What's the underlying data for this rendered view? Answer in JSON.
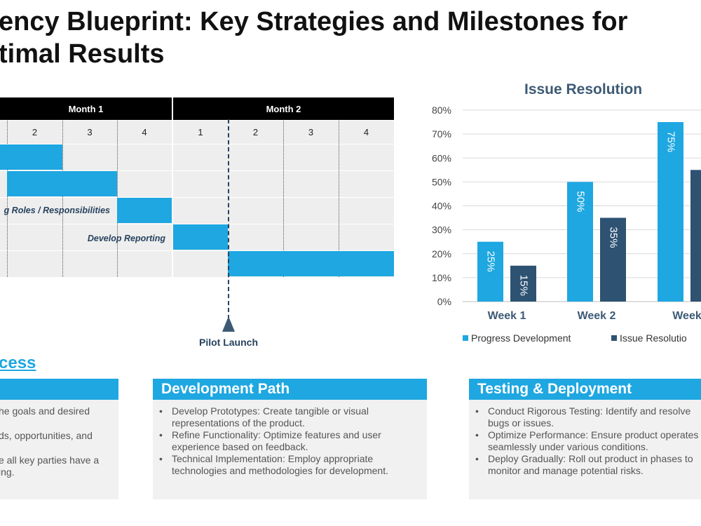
{
  "title": {
    "line1": "ency Blueprint: Key Strategies and Milestones for",
    "line2": "timal Results"
  },
  "gantt": {
    "months": [
      "Month 1",
      "Month 2"
    ],
    "weeks": [
      "2",
      "3",
      "4",
      "1",
      "2",
      "3",
      "4"
    ],
    "tasks": [
      {
        "label": ""
      },
      {
        "label": ""
      },
      {
        "label": "g Roles / Responsibilities"
      },
      {
        "label": "Develop Reporting"
      },
      {
        "label": ""
      }
    ],
    "milestone": "Pilot Launch"
  },
  "chart_data": {
    "type": "bar",
    "title": "Issue Resolution",
    "categories": [
      "Week 1",
      "Week 2",
      "Week"
    ],
    "series": [
      {
        "name": "Progress Development",
        "values": [
          25,
          50,
          75
        ],
        "color": "#1ea7e1"
      },
      {
        "name": "Issue Resolution",
        "values": [
          15,
          35,
          55
        ],
        "color": "#2e5272"
      }
    ],
    "data_labels": [
      [
        "25%",
        "50%",
        "75%"
      ],
      [
        "15%",
        "35%",
        ""
      ]
    ],
    "yticks": [
      "0%",
      "10%",
      "20%",
      "30%",
      "40%",
      "50%",
      "60%",
      "70%",
      "80%"
    ],
    "ylim": [
      0,
      80
    ],
    "legend": "bottom",
    "grid": true,
    "legend_labels": [
      "Progress Development",
      "Issue Resolutio"
    ]
  },
  "process": {
    "heading": "cess",
    "cards": [
      {
        "title": "",
        "items": [
          "he goals and desired",
          "ds, opportunities, and",
          "e all key parties have a",
          "ing."
        ]
      },
      {
        "title": "Development Path",
        "items": [
          "Develop Prototypes: Create tangible or visual representations of the product.",
          "Refine Functionality: Optimize features and user experience based on feedback.",
          "Technical Implementation: Employ appropriate technologies and methodologies for development."
        ]
      },
      {
        "title": "Testing & Deployment",
        "items": [
          "Conduct Rigorous Testing: Identify and resolve bugs or issues.",
          "Optimize Performance: Ensure product operates seamlessly under various conditions.",
          "Deploy Gradually: Roll out product in phases to monitor and manage potential risks."
        ]
      }
    ]
  }
}
